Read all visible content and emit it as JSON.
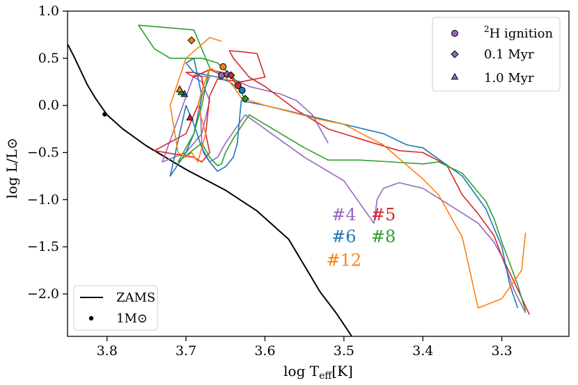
{
  "chart_data": {
    "type": "line",
    "xlabel": "log T_eff[K]",
    "xlabel_main": "log T",
    "xlabel_sub": "eff",
    "xlabel_unit": "[K]",
    "ylabel": "log L/L⊙",
    "xlim": [
      3.85,
      3.215
    ],
    "ylim": [
      -2.45,
      1.0
    ],
    "x_ticks": [
      3.8,
      3.7,
      3.6,
      3.5,
      3.4,
      3.3
    ],
    "x_tick_labels": [
      "3.8",
      "3.7",
      "3.6",
      "3.5",
      "3.4",
      "3.3"
    ],
    "y_ticks": [
      1.0,
      0.5,
      0.0,
      -0.5,
      -1.0,
      -1.5,
      -2.0
    ],
    "y_tick_labels": [
      "1.0",
      "0.5",
      "0.0",
      "−0.5",
      "−1.0",
      "−1.5",
      "−2.0"
    ],
    "zams": {
      "name": "ZAMS",
      "color": "#000000",
      "x": [
        3.85,
        3.842,
        3.825,
        3.815,
        3.8,
        3.78,
        3.75,
        3.7,
        3.65,
        3.61,
        3.57,
        3.55,
        3.53,
        3.51,
        3.49
      ],
      "y": [
        0.65,
        0.52,
        0.22,
        0.08,
        -0.1,
        -0.25,
        -0.43,
        -0.68,
        -0.9,
        -1.12,
        -1.42,
        -1.7,
        -1.98,
        -2.2,
        -2.45
      ],
      "one_msun": {
        "x": 3.803,
        "y": -0.095,
        "label": "1M⊙"
      }
    },
    "series": [
      {
        "name": "#4",
        "color": "#9467bd",
        "x": [
          3.27,
          3.285,
          3.3,
          3.31,
          3.32,
          3.33,
          3.36,
          3.4,
          3.43,
          3.45,
          3.458,
          3.462,
          3.5,
          3.55,
          3.6,
          3.625,
          3.65,
          3.66,
          3.67,
          3.678,
          3.68,
          3.682,
          3.68,
          3.67,
          3.69,
          3.73,
          3.7,
          3.68,
          3.67,
          3.68,
          3.69,
          3.67,
          3.655,
          3.648,
          3.64,
          3.62,
          3.58,
          3.56,
          3.54,
          3.52
        ],
        "y": [
          -2.2,
          -1.95,
          -1.6,
          -1.45,
          -1.35,
          -1.25,
          -1.09,
          -0.88,
          -0.82,
          -0.88,
          -1.0,
          -1.25,
          -0.8,
          -0.55,
          -0.25,
          -0.1,
          -0.4,
          -0.55,
          -0.6,
          -0.5,
          -0.4,
          0.0,
          0.1,
          0.3,
          0.32,
          -0.6,
          -0.5,
          -0.3,
          0.05,
          0.25,
          0.3,
          0.38,
          0.32,
          0.35,
          0.28,
          0.2,
          0.12,
          0.05,
          -0.1,
          -0.4
        ]
      },
      {
        "name": "#5",
        "color": "#d62728",
        "x": [
          3.265,
          3.28,
          3.3,
          3.31,
          3.33,
          3.35,
          3.37,
          3.4,
          3.43,
          3.47,
          3.52,
          3.56,
          3.6,
          3.62,
          3.64,
          3.645,
          3.63,
          3.61,
          3.6,
          3.63,
          3.66,
          3.67,
          3.675,
          3.67,
          3.68,
          3.69,
          3.74,
          3.7,
          3.685,
          3.678,
          3.68,
          3.69,
          3.7,
          3.69,
          3.67,
          3.645,
          3.635
        ],
        "y": [
          -2.22,
          -1.95,
          -1.6,
          -1.38,
          -1.15,
          -0.95,
          -0.63,
          -0.5,
          -0.48,
          -0.38,
          -0.25,
          -0.05,
          0.2,
          0.3,
          0.5,
          0.58,
          0.57,
          0.55,
          0.3,
          0.25,
          0.28,
          0.1,
          -0.3,
          -0.5,
          -0.6,
          -0.55,
          -0.48,
          -0.3,
          0.0,
          0.2,
          0.3,
          0.35,
          0.35,
          0.3,
          0.38,
          0.33,
          0.2
        ]
      },
      {
        "name": "#6",
        "color": "#1f77b4",
        "x": [
          3.28,
          3.29,
          3.3,
          3.32,
          3.35,
          3.4,
          3.42,
          3.45,
          3.5,
          3.55,
          3.6,
          3.63,
          3.635,
          3.64,
          3.65,
          3.66,
          3.67,
          3.68,
          3.69,
          3.7,
          3.72,
          3.7,
          3.69,
          3.68,
          3.685,
          3.69,
          3.7,
          3.69,
          3.66,
          3.645,
          3.63
        ],
        "y": [
          -2.15,
          -1.9,
          -1.5,
          -1.1,
          -0.75,
          -0.45,
          -0.42,
          -0.3,
          -0.2,
          -0.1,
          0.0,
          0.05,
          -0.4,
          -0.55,
          -0.65,
          -0.7,
          -0.6,
          -0.45,
          -0.2,
          0.0,
          -0.75,
          -0.5,
          -0.3,
          0.1,
          0.3,
          0.5,
          0.45,
          0.35,
          0.3,
          0.25,
          0.16
        ]
      },
      {
        "name": "#8",
        "color": "#2ca02c",
        "x": [
          3.27,
          3.28,
          3.3,
          3.31,
          3.32,
          3.35,
          3.38,
          3.4,
          3.44,
          3.48,
          3.52,
          3.55,
          3.6,
          3.62,
          3.64,
          3.65,
          3.655,
          3.66,
          3.67,
          3.68,
          3.71,
          3.69,
          3.68,
          3.67,
          3.69,
          3.76,
          3.74,
          3.72,
          3.68,
          3.66,
          3.64,
          3.63,
          3.625
        ],
        "y": [
          -2.18,
          -1.9,
          -1.45,
          -1.2,
          -1.02,
          -0.72,
          -0.6,
          -0.62,
          -0.6,
          -0.58,
          -0.58,
          -0.45,
          -0.2,
          -0.1,
          -0.35,
          -0.5,
          -0.62,
          -0.64,
          -0.55,
          -0.4,
          -0.6,
          -0.3,
          0.0,
          0.4,
          0.8,
          0.85,
          0.6,
          0.5,
          0.5,
          0.45,
          0.3,
          0.15,
          0.05
        ]
      },
      {
        "name": "#12",
        "color": "#ff7f0e",
        "x": [
          3.27,
          3.275,
          3.3,
          3.33,
          3.35,
          3.38,
          3.4,
          3.45,
          3.5,
          3.53,
          3.6,
          3.63,
          3.64,
          3.645,
          3.65,
          3.66,
          3.67,
          3.68,
          3.685,
          3.68,
          3.675,
          3.685,
          3.693,
          3.7,
          3.71,
          3.72,
          3.7,
          3.67,
          3.655
        ],
        "y": [
          -1.35,
          -1.75,
          -2.05,
          -2.15,
          -1.4,
          -0.95,
          -0.78,
          -0.42,
          -0.2,
          -0.15,
          0.0,
          0.08,
          0.2,
          0.25,
          0.3,
          0.35,
          0.4,
          0.15,
          0.0,
          -0.15,
          -0.3,
          -0.6,
          -0.5,
          -0.55,
          -0.5,
          0.0,
          0.5,
          0.72,
          0.68
        ]
      }
    ],
    "markers": {
      "h2_ignition": [
        {
          "series": "#4",
          "x": 3.655,
          "y": 0.32
        },
        {
          "series": "#5",
          "x": 3.634,
          "y": 0.21
        },
        {
          "series": "#6",
          "x": 3.629,
          "y": 0.16
        },
        {
          "series": "#12",
          "x": 3.653,
          "y": 0.41
        }
      ],
      "myr_0_1": [
        {
          "series": "#4",
          "x": 3.648,
          "y": 0.33
        },
        {
          "series": "#5",
          "x": 3.643,
          "y": 0.32
        },
        {
          "series": "#8",
          "x": 3.625,
          "y": 0.07
        },
        {
          "series": "#12",
          "x": 3.693,
          "y": 0.69
        }
      ],
      "myr_1_0": [
        {
          "series": "#5",
          "x": 3.695,
          "y": -0.13
        },
        {
          "series": "#6",
          "x": 3.702,
          "y": 0.12
        },
        {
          "series": "#8",
          "x": 3.706,
          "y": 0.14
        },
        {
          "series": "#12",
          "x": 3.708,
          "y": 0.17
        }
      ]
    },
    "legend_markers": {
      "placement": "top-right",
      "entries": [
        {
          "key": "h2_ignition",
          "label_sup": "2",
          "label": "H ignition",
          "shape": "circle",
          "color": "#9467bd"
        },
        {
          "key": "myr_0_1",
          "label": "0.1 Myr",
          "shape": "diamond",
          "color": "#9467bd"
        },
        {
          "key": "myr_1_0",
          "label": "1.0 Myr",
          "shape": "triangle",
          "color": "#9467bd"
        }
      ]
    },
    "legend_zams": {
      "placement": "lower-left",
      "entries": [
        {
          "label": "ZAMS",
          "shape": "line",
          "color": "#000000"
        },
        {
          "label": "1M⊙",
          "shape": "dot",
          "color": "#000000"
        }
      ]
    },
    "track_labels": [
      {
        "text": "#4",
        "color": "#9467bd",
        "x": 3.5,
        "y": -1.22
      },
      {
        "text": "#5",
        "color": "#d62728",
        "x": 3.45,
        "y": -1.22
      },
      {
        "text": "#6",
        "color": "#1f77b4",
        "x": 3.5,
        "y": -1.45
      },
      {
        "text": "#8",
        "color": "#2ca02c",
        "x": 3.45,
        "y": -1.45
      },
      {
        "text": "#12",
        "color": "#ff7f0e",
        "x": 3.5,
        "y": -1.7
      }
    ]
  }
}
